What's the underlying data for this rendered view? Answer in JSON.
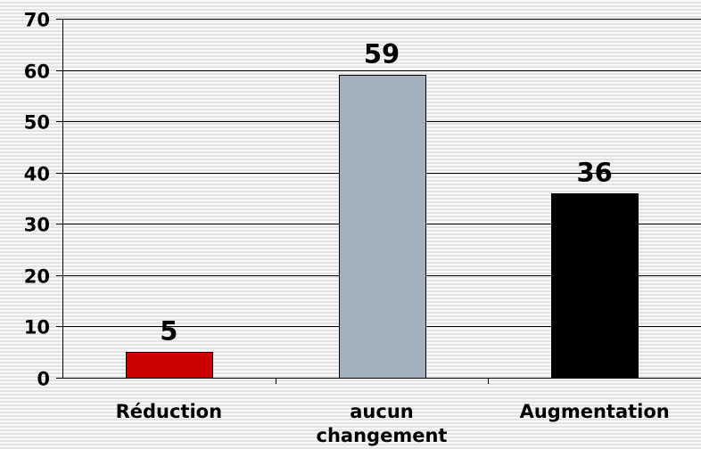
{
  "chart_data": {
    "type": "bar",
    "title": "",
    "xlabel": "",
    "ylabel": "",
    "categories": [
      "Réduction",
      "aucun changement",
      "Augmentation"
    ],
    "category_label_lines": [
      [
        "Réduction"
      ],
      [
        "aucun",
        "changement"
      ],
      [
        "Augmentation"
      ]
    ],
    "values": [
      5,
      59,
      36
    ],
    "data_labels": [
      "5",
      "59",
      "36"
    ],
    "bar_colors": [
      "#cc0000",
      "#a3b1bf",
      "#000000"
    ],
    "ylim": [
      0,
      70
    ],
    "yticks": [
      0,
      10,
      20,
      30,
      40,
      50,
      60,
      70
    ],
    "ytick_labels": [
      "0",
      "10",
      "20",
      "30",
      "40",
      "50",
      "60",
      "70"
    ],
    "grid": true,
    "legend": "none"
  }
}
